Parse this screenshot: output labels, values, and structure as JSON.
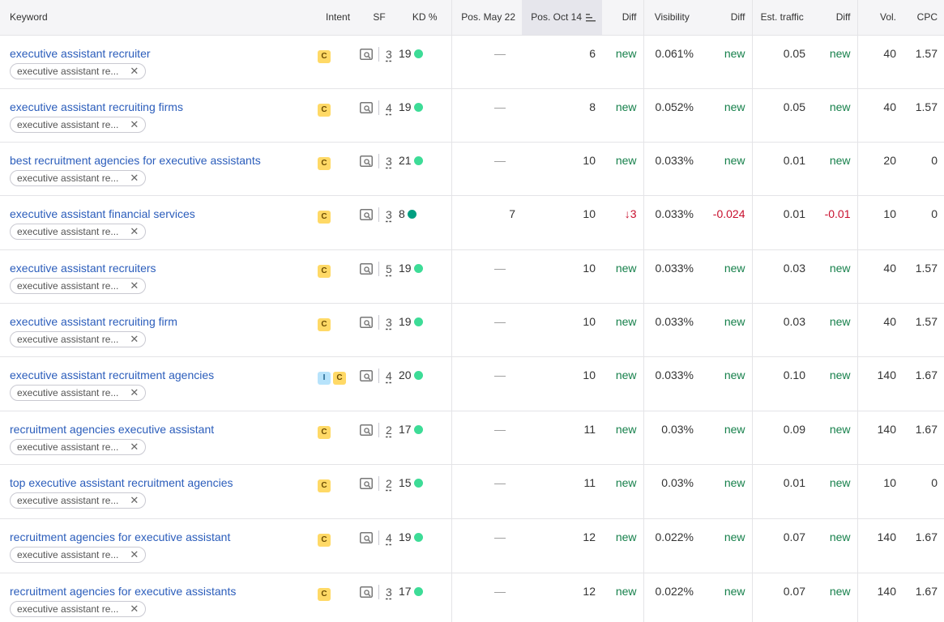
{
  "headers": {
    "keyword": "Keyword",
    "intent": "Intent",
    "sf": "SF",
    "kd": "KD %",
    "pos_prev": "Pos. May 22",
    "pos_curr": "Pos. Oct 14",
    "pos_diff": "Diff",
    "visibility": "Visibility",
    "vis_diff": "Diff",
    "traffic": "Est. traffic",
    "traffic_diff": "Diff",
    "vol": "Vol.",
    "cpc": "CPC"
  },
  "tag_label": "executive assistant re...",
  "colors": {
    "link": "#2b5dbb",
    "positive": "#16804b",
    "negative": "#c8102e",
    "kd_easy": "#3ddc97",
    "kd_very_easy": "#009f81",
    "intent_c": "#ffd966",
    "intent_i": "#b7e3fb"
  },
  "rows": [
    {
      "keyword": "executive assistant recruiter",
      "intents": [
        "C"
      ],
      "sf": "3",
      "kd": "19",
      "kd_color": "#3ddc97",
      "pos_prev": "—",
      "pos_curr": "6",
      "pos_diff": "new",
      "visibility": "0.061%",
      "vis_diff": "new",
      "traffic": "0.05",
      "traffic_diff": "new",
      "vol": "40",
      "cpc": "1.57"
    },
    {
      "keyword": "executive assistant recruiting firms",
      "intents": [
        "C"
      ],
      "sf": "4",
      "kd": "19",
      "kd_color": "#3ddc97",
      "pos_prev": "—",
      "pos_curr": "8",
      "pos_diff": "new",
      "visibility": "0.052%",
      "vis_diff": "new",
      "traffic": "0.05",
      "traffic_diff": "new",
      "vol": "40",
      "cpc": "1.57"
    },
    {
      "keyword": "best recruitment agencies for executive assistants",
      "intents": [
        "C"
      ],
      "sf": "3",
      "kd": "21",
      "kd_color": "#3ddc97",
      "pos_prev": "—",
      "pos_curr": "10",
      "pos_diff": "new",
      "visibility": "0.033%",
      "vis_diff": "new",
      "traffic": "0.01",
      "traffic_diff": "new",
      "vol": "20",
      "cpc": "0"
    },
    {
      "keyword": "executive assistant financial services",
      "intents": [
        "C"
      ],
      "sf": "3",
      "kd": "8",
      "kd_color": "#009f81",
      "pos_prev": "7",
      "pos_curr": "10",
      "pos_diff": "↓3",
      "pos_diff_neg": true,
      "visibility": "0.033%",
      "vis_diff": "-0.024",
      "vis_diff_neg": true,
      "traffic": "0.01",
      "traffic_diff": "-0.01",
      "traffic_diff_neg": true,
      "vol": "10",
      "cpc": "0"
    },
    {
      "keyword": "executive assistant recruiters",
      "intents": [
        "C"
      ],
      "sf": "5",
      "kd": "19",
      "kd_color": "#3ddc97",
      "pos_prev": "—",
      "pos_curr": "10",
      "pos_diff": "new",
      "visibility": "0.033%",
      "vis_diff": "new",
      "traffic": "0.03",
      "traffic_diff": "new",
      "vol": "40",
      "cpc": "1.57"
    },
    {
      "keyword": "executive assistant recruiting firm",
      "intents": [
        "C"
      ],
      "sf": "3",
      "kd": "19",
      "kd_color": "#3ddc97",
      "pos_prev": "—",
      "pos_curr": "10",
      "pos_diff": "new",
      "visibility": "0.033%",
      "vis_diff": "new",
      "traffic": "0.03",
      "traffic_diff": "new",
      "vol": "40",
      "cpc": "1.57"
    },
    {
      "keyword": "executive assistant recruitment agencies",
      "intents": [
        "I",
        "C"
      ],
      "sf": "4",
      "kd": "20",
      "kd_color": "#3ddc97",
      "pos_prev": "—",
      "pos_curr": "10",
      "pos_diff": "new",
      "visibility": "0.033%",
      "vis_diff": "new",
      "traffic": "0.10",
      "traffic_diff": "new",
      "vol": "140",
      "cpc": "1.67"
    },
    {
      "keyword": "recruitment agencies executive assistant",
      "intents": [
        "C"
      ],
      "sf": "2",
      "kd": "17",
      "kd_color": "#3ddc97",
      "pos_prev": "—",
      "pos_curr": "11",
      "pos_diff": "new",
      "visibility": "0.03%",
      "vis_diff": "new",
      "traffic": "0.09",
      "traffic_diff": "new",
      "vol": "140",
      "cpc": "1.67"
    },
    {
      "keyword": "top executive assistant recruitment agencies",
      "intents": [
        "C"
      ],
      "sf": "2",
      "kd": "15",
      "kd_color": "#3ddc97",
      "pos_prev": "—",
      "pos_curr": "11",
      "pos_diff": "new",
      "visibility": "0.03%",
      "vis_diff": "new",
      "traffic": "0.01",
      "traffic_diff": "new",
      "vol": "10",
      "cpc": "0"
    },
    {
      "keyword": "recruitment agencies for executive assistant",
      "intents": [
        "C"
      ],
      "sf": "4",
      "kd": "19",
      "kd_color": "#3ddc97",
      "pos_prev": "—",
      "pos_curr": "12",
      "pos_diff": "new",
      "visibility": "0.022%",
      "vis_diff": "new",
      "traffic": "0.07",
      "traffic_diff": "new",
      "vol": "140",
      "cpc": "1.67"
    },
    {
      "keyword": "recruitment agencies for executive assistants",
      "intents": [
        "C"
      ],
      "sf": "3",
      "kd": "17",
      "kd_color": "#3ddc97",
      "pos_prev": "—",
      "pos_curr": "12",
      "pos_diff": "new",
      "visibility": "0.022%",
      "vis_diff": "new",
      "traffic": "0.07",
      "traffic_diff": "new",
      "vol": "140",
      "cpc": "1.67"
    }
  ]
}
